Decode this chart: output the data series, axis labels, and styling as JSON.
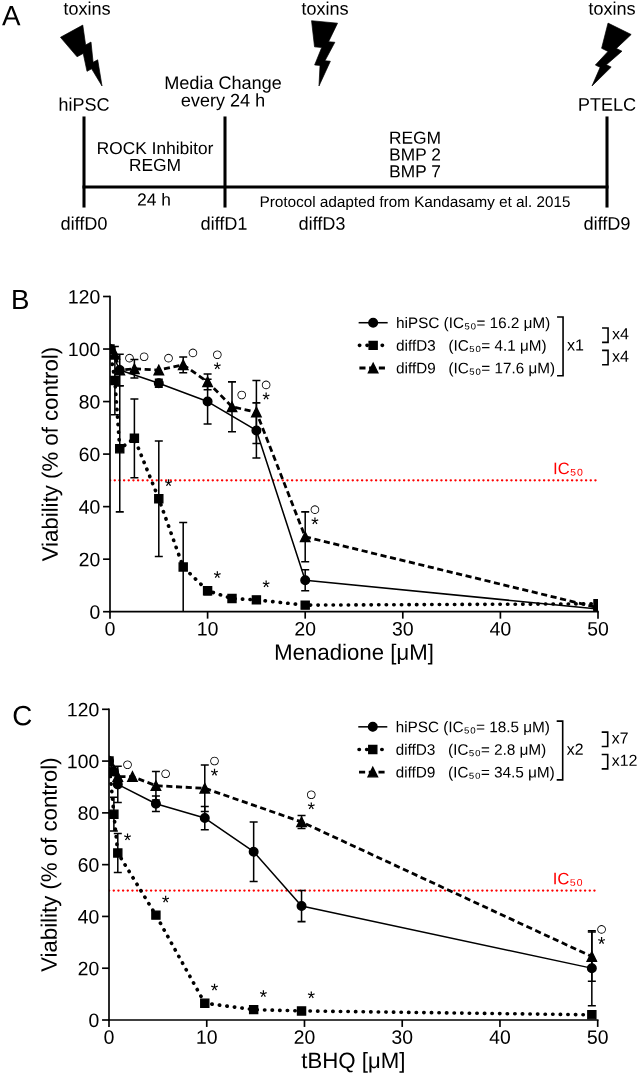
{
  "chart_data": [
    {
      "type": "other",
      "title": "A",
      "annotations": [
        "toxins",
        "toxins",
        "toxins",
        "hiPSC",
        "Media Change\nevery 24 h",
        "PTELC",
        "ROCK Inhibitor\nREGM",
        "REGM\nBMP 2\nBMP 7",
        "24 h",
        "Protocol adapted from Kandasamy et al. 2015",
        "diffD0",
        "diffD1",
        "diffD3",
        "diffD9"
      ]
    },
    {
      "type": "line",
      "title": "B",
      "xlabel": "Menadione [μM]",
      "ylabel": "Viability (% of control)",
      "xlim": [
        0,
        50
      ],
      "ylim": [
        0,
        120
      ],
      "xticks": [
        0,
        10,
        20,
        30,
        40,
        50
      ],
      "yticks": [
        0,
        20,
        40,
        60,
        80,
        100,
        120
      ],
      "legend": "top right",
      "ref_lines": [
        {
          "axis": "y",
          "value": 50,
          "label": "IC₅₀",
          "color": "#ff0000",
          "line_style": "dotted"
        }
      ],
      "series": [
        {
          "name": "hiPSC (IC₅₀= 16.2 μM)",
          "color": "#000000",
          "marker": "circle",
          "line_style": "solid",
          "x": [
            0,
            1,
            5,
            10,
            15,
            20,
            50
          ],
          "values": [
            100,
            92,
            87,
            80,
            69,
            12,
            1
          ],
          "errors": [
            null,
            6,
            1.5,
            8.5,
            10.5,
            4,
            null
          ]
        },
        {
          "name": "diffD3   (IC₅₀= 4.1 μM)",
          "color": "#000000",
          "marker": "square",
          "line_style": "dotted",
          "x": [
            0,
            0.5,
            1,
            2.5,
            5,
            7.5,
            10,
            12.5,
            15,
            20,
            50
          ],
          "values": [
            100,
            88,
            62,
            66,
            43,
            17,
            8,
            5,
            4.5,
            2.5,
            3
          ],
          "errors": [
            null,
            13,
            24,
            15,
            22,
            17,
            1.5,
            null,
            null,
            null,
            null
          ]
        },
        {
          "name": "diffD9   (IC₅₀= 17.6 μM)",
          "color": "#000000",
          "marker": "triangle",
          "line_style": "dashed",
          "x": [
            0,
            0.5,
            1,
            2.5,
            5,
            7.5,
            10,
            12.5,
            15,
            20,
            50
          ],
          "values": [
            100,
            98,
            92,
            92.5,
            92,
            94,
            87.5,
            78,
            76,
            28.5,
            1.5
          ],
          "errors": [
            null,
            null,
            null,
            3.5,
            null,
            3,
            3,
            9.5,
            12,
            9.5,
            null
          ]
        }
      ],
      "annotations": [
        {
          "text": "○",
          "x": 1,
          "y": 92
        },
        {
          "text": "○",
          "x": 2.5,
          "y": 92.5
        },
        {
          "text": "○",
          "x": 5,
          "y": 92
        },
        {
          "text": "○",
          "x": 7.5,
          "y": 94
        },
        {
          "text": "*",
          "x": 10,
          "y": 87.5
        },
        {
          "text": "○",
          "x": 10,
          "y": 87.5
        },
        {
          "text": "○",
          "x": 12.5,
          "y": 78
        },
        {
          "text": "*",
          "x": 15,
          "y": 76
        },
        {
          "text": "○",
          "x": 15,
          "y": 76
        },
        {
          "text": "*",
          "x": 5,
          "y": 43
        },
        {
          "text": "*",
          "x": 10,
          "y": 8
        },
        {
          "text": "*",
          "x": 15,
          "y": 4.5
        },
        {
          "text": "*",
          "x": 20,
          "y": 28.5
        },
        {
          "text": "○",
          "x": 20,
          "y": 28.5
        },
        "x1",
        "x4",
        "x4"
      ]
    },
    {
      "type": "line",
      "title": "C",
      "xlabel": "tBHQ [μM]",
      "ylabel": "Viability (% of control)",
      "xlim": [
        0,
        50
      ],
      "ylim": [
        0,
        120
      ],
      "xticks": [
        0,
        10,
        20,
        30,
        40,
        50
      ],
      "yticks": [
        0,
        20,
        40,
        60,
        80,
        100,
        120
      ],
      "legend": "top right",
      "ref_lines": [
        {
          "axis": "y",
          "value": 50,
          "label": "IC₅₀",
          "color": "#ff0000",
          "line_style": "dotted"
        }
      ],
      "series": [
        {
          "name": "hiPSC (IC₅₀= 18.5 μM)",
          "color": "#000000",
          "marker": "circle",
          "line_style": "solid",
          "x": [
            0,
            0.5,
            0.9,
            4.8,
            9.8,
            14.8,
            19.7,
            49.4
          ],
          "values": [
            100,
            96,
            91,
            83.5,
            78,
            65,
            44,
            20
          ],
          "errors": [
            null,
            null,
            7,
            3,
            4.5,
            11.5,
            6,
            14.5
          ]
        },
        {
          "name": "diffD3   (IC₅₀= 2.8 μM)",
          "color": "#000000",
          "marker": "square",
          "line_style": "dotted",
          "x": [
            0,
            0.5,
            0.9,
            4.8,
            9.8,
            14.8,
            19.7,
            49.4
          ],
          "values": [
            100,
            79.5,
            64.5,
            40.5,
            6.5,
            4,
            3.5,
            2
          ],
          "errors": [
            null,
            6.5,
            7.5,
            null,
            null,
            null,
            null,
            null
          ]
        },
        {
          "name": "diffD9   (IC₅₀= 34.5 μM)",
          "color": "#000000",
          "marker": "triangle",
          "line_style": "dashed",
          "x": [
            0,
            0.5,
            0.9,
            2.4,
            4.8,
            9.8,
            19.7,
            49.4
          ],
          "values": [
            100,
            96.5,
            94,
            94,
            90.5,
            89.5,
            76.5,
            24.5
          ],
          "errors": [
            null,
            null,
            null,
            null,
            5.5,
            9,
            2.5,
            9.5
          ]
        }
      ],
      "annotations": [
        {
          "text": "○",
          "x": 0.9,
          "y": 94
        },
        {
          "text": "○",
          "x": 4.8,
          "y": 90.5
        },
        {
          "text": "*",
          "x": 9.8,
          "y": 89.5
        },
        {
          "text": "○",
          "x": 9.8,
          "y": 89.5
        },
        {
          "text": "*",
          "x": 19.7,
          "y": 76.5
        },
        {
          "text": "○",
          "x": 19.7,
          "y": 76.5
        },
        {
          "text": "*",
          "x": 0.9,
          "y": 64.5
        },
        {
          "text": "*",
          "x": 4.8,
          "y": 40.5
        },
        {
          "text": "*",
          "x": 9.8,
          "y": 6.5
        },
        {
          "text": "*",
          "x": 14.8,
          "y": 4
        },
        {
          "text": "*",
          "x": 19.7,
          "y": 3.5
        },
        {
          "text": "*",
          "x": 49.4,
          "y": 24.5
        },
        {
          "text": "○",
          "x": 49.4,
          "y": 24.5
        },
        "x2",
        "x7",
        "x12"
      ]
    }
  ]
}
